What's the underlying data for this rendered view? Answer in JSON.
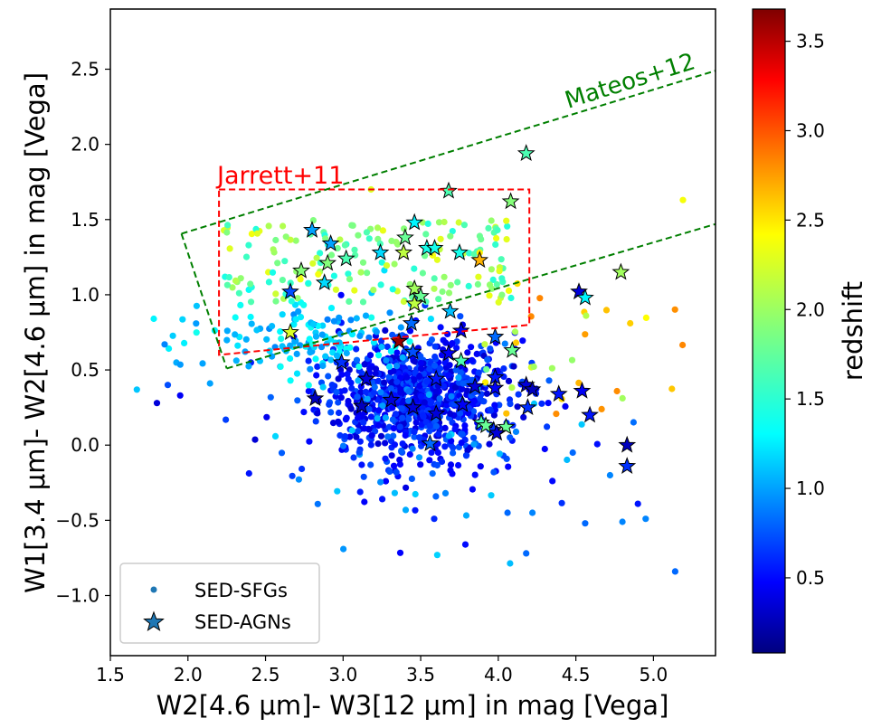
{
  "chart_data": {
    "type": "scatter",
    "xlabel": "W2[4.6 μm]- W3[12 μm] in mag [Vega]",
    "ylabel": "W1[3.4 μm]- W2[4.6 μm] in mag [Vega]",
    "xlim": [
      1.5,
      5.4
    ],
    "ylim": [
      -1.4,
      2.9
    ],
    "x_ticks": [
      1.5,
      2.0,
      2.5,
      3.0,
      3.5,
      4.0,
      4.5,
      5.0
    ],
    "x_tick_labels": [
      "1.5",
      "2.0",
      "2.5",
      "3.0",
      "3.5",
      "4.0",
      "4.5",
      "5.0"
    ],
    "y_ticks": [
      -1.0,
      -0.5,
      0.0,
      0.5,
      1.0,
      1.5,
      2.0,
      2.5
    ],
    "y_tick_labels": [
      "−1.0",
      "−0.5",
      "0.0",
      "0.5",
      "1.0",
      "1.5",
      "2.0",
      "2.5"
    ],
    "colorbar": {
      "label": "redshift",
      "range": [
        0.08,
        3.68
      ],
      "ticks": [
        0.5,
        1.0,
        1.5,
        2.0,
        2.5,
        3.0,
        3.5
      ],
      "tick_labels": [
        "0.5",
        "1.0",
        "1.5",
        "2.0",
        "2.5",
        "3.0",
        "3.5"
      ],
      "colormap": "jet"
    },
    "regions": [
      {
        "name": "Jarrett+11",
        "label": "Jarrett+11",
        "color": "#ff0000",
        "polygon": [
          [
            2.2,
            1.7
          ],
          [
            4.2,
            1.7
          ],
          [
            4.2,
            0.8
          ],
          [
            2.2,
            0.6
          ],
          [
            2.2,
            1.7
          ]
        ]
      },
      {
        "name": "Mateos+12",
        "label": "Mateos+12",
        "color": "#007f00",
        "lines": [
          [
            [
              1.958,
              1.406
            ],
            [
              5.4,
              2.49
            ]
          ],
          [
            [
              1.958,
              1.406
            ],
            [
              2.25,
              0.51
            ]
          ],
          [
            [
              2.25,
              0.51
            ],
            [
              5.4,
              1.47
            ]
          ]
        ]
      }
    ],
    "legend": {
      "position": "bottom-left",
      "entries": [
        {
          "label": "SED-SFGs",
          "marker": "dot"
        },
        {
          "label": "SED-AGNs",
          "marker": "star"
        }
      ]
    },
    "series": [
      {
        "name": "SED-AGNs",
        "marker": "star",
        "points": [
          [
            4.18,
            1.94,
            1.7
          ],
          [
            3.68,
            1.69,
            1.7
          ],
          [
            4.08,
            1.62,
            1.9
          ],
          [
            2.8,
            1.43,
            1.1
          ],
          [
            3.46,
            1.48,
            1.4
          ],
          [
            2.92,
            1.34,
            1.1
          ],
          [
            3.4,
            1.38,
            1.8
          ],
          [
            3.54,
            1.31,
            1.5
          ],
          [
            3.24,
            1.28,
            1.3
          ],
          [
            3.59,
            1.31,
            1.5
          ],
          [
            3.75,
            1.28,
            1.5
          ],
          [
            3.39,
            1.28,
            2.1
          ],
          [
            3.88,
            1.23,
            2.6
          ],
          [
            3.02,
            1.24,
            1.7
          ],
          [
            2.9,
            1.21,
            1.9
          ],
          [
            2.73,
            1.16,
            1.9
          ],
          [
            2.88,
            1.08,
            1.3
          ],
          [
            2.66,
            1.02,
            0.8
          ],
          [
            3.46,
            1.04,
            2.0
          ],
          [
            3.5,
            0.99,
            1.8
          ],
          [
            3.46,
            0.94,
            2.1
          ],
          [
            3.69,
            0.89,
            1.2
          ],
          [
            4.52,
            1.02,
            0.4
          ],
          [
            4.56,
            0.98,
            1.4
          ],
          [
            4.79,
            1.15,
            2.0
          ],
          [
            3.44,
            0.81,
            0.9
          ],
          [
            2.66,
            0.75,
            2.2
          ],
          [
            3.36,
            0.69,
            3.6
          ],
          [
            3.76,
            0.76,
            0.5
          ],
          [
            4.09,
            0.63,
            1.8
          ],
          [
            3.76,
            0.56,
            1.7
          ],
          [
            3.98,
            0.72,
            0.9
          ],
          [
            2.99,
            0.55,
            0.7
          ],
          [
            3.45,
            0.62,
            0.8
          ],
          [
            3.6,
            0.44,
            0.6
          ],
          [
            3.98,
            0.45,
            0.6
          ],
          [
            4.18,
            0.4,
            0.4
          ],
          [
            4.22,
            0.37,
            0.3
          ],
          [
            4.39,
            0.34,
            0.6
          ],
          [
            4.54,
            0.36,
            0.5
          ],
          [
            4.59,
            0.2,
            0.6
          ],
          [
            4.19,
            0.25,
            0.7
          ],
          [
            3.98,
            0.38,
            0.5
          ],
          [
            2.82,
            0.31,
            0.3
          ],
          [
            3.12,
            0.26,
            0.3
          ],
          [
            3.31,
            0.3,
            0.4
          ],
          [
            3.45,
            0.25,
            0.4
          ],
          [
            3.6,
            0.21,
            0.4
          ],
          [
            3.77,
            0.27,
            0.5
          ],
          [
            3.89,
            0.15,
            1.7
          ],
          [
            3.97,
            0.1,
            0.7
          ],
          [
            4.05,
            0.12,
            1.8
          ],
          [
            3.99,
            0.08,
            0.4
          ],
          [
            3.92,
            0.13,
            1.8
          ],
          [
            3.56,
            0.01,
            0.9
          ],
          [
            4.83,
            0.0,
            0.3
          ],
          [
            4.83,
            -0.14,
            0.7
          ],
          [
            3.85,
            0.39,
            0.4
          ],
          [
            3.15,
            0.44,
            0.4
          ],
          [
            3.68,
            0.61,
            0.5
          ]
        ]
      }
    ]
  }
}
